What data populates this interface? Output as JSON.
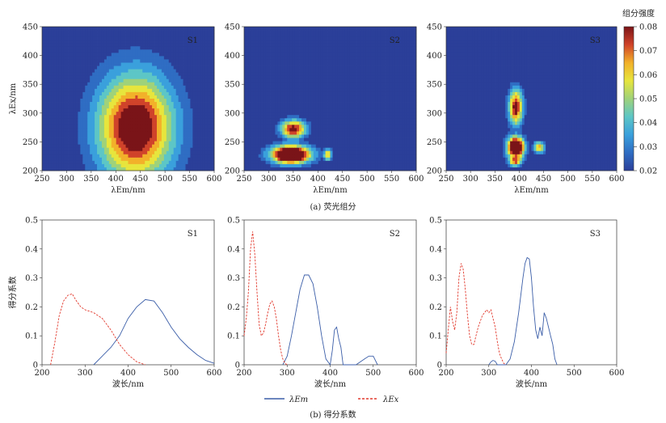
{
  "colors": {
    "colormap": [
      "#2b3f99",
      "#2f6dc3",
      "#3aa0dc",
      "#5dc6c6",
      "#9fd27a",
      "#e7e53d",
      "#f2b12a",
      "#d0432a",
      "#7a1418"
    ],
    "em_line": "#3b5ea8",
    "ex_line": "#e23a2e",
    "axis": "#333333"
  },
  "captions": {
    "a": "(a) 荧光组分",
    "b": "(b) 得分系数"
  },
  "colorbar": {
    "title": "组分强度",
    "ticks": [
      "0.08",
      "0.07",
      "0.06",
      "0.05",
      "0.04",
      "0.03",
      "0.02"
    ]
  },
  "legend": {
    "em_label": "λEm",
    "ex_label": "λEx"
  },
  "chart_data": [
    {
      "type": "heatmap",
      "label": "S1",
      "xlabel": "λEm/nm",
      "ylabel": "λEx/nm",
      "xlim": [
        250,
        600
      ],
      "ylim": [
        200,
        450
      ],
      "xticks": [
        250,
        300,
        350,
        400,
        450,
        500,
        550,
        600
      ],
      "yticks": [
        200,
        250,
        300,
        350,
        400,
        450
      ],
      "peaks": [
        {
          "em": 440,
          "ex": 275,
          "sx": 55,
          "sy": 65,
          "amp": 0.065
        }
      ],
      "range": [
        0.02,
        0.08
      ]
    },
    {
      "type": "heatmap",
      "label": "S2",
      "xlabel": "λEm/nm",
      "ylabel": "",
      "xlim": [
        250,
        600
      ],
      "ylim": [
        200,
        450
      ],
      "xticks": [
        250,
        300,
        350,
        400,
        450,
        500,
        550,
        600
      ],
      "yticks": [
        200,
        250,
        300,
        350,
        400,
        450
      ],
      "peaks": [
        {
          "em": 345,
          "ex": 228,
          "sx": 28,
          "sy": 11,
          "amp": 0.09
        },
        {
          "em": 350,
          "ex": 272,
          "sx": 18,
          "sy": 11,
          "amp": 0.06
        },
        {
          "em": 420,
          "ex": 228,
          "sx": 6,
          "sy": 7,
          "amp": 0.045
        }
      ],
      "range": [
        0.02,
        0.08
      ]
    },
    {
      "type": "heatmap",
      "label": "S3",
      "xlabel": "λEm/nm",
      "ylabel": "",
      "xlim": [
        250,
        600
      ],
      "ylim": [
        200,
        450
      ],
      "xticks": [
        250,
        300,
        350,
        400,
        450,
        500,
        550,
        600
      ],
      "yticks": [
        200,
        250,
        300,
        350,
        400,
        450
      ],
      "peaks": [
        {
          "em": 393,
          "ex": 240,
          "sx": 12,
          "sy": 13,
          "amp": 0.09
        },
        {
          "em": 393,
          "ex": 310,
          "sx": 10,
          "sy": 22,
          "amp": 0.06
        },
        {
          "em": 392,
          "ex": 218,
          "sx": 10,
          "sy": 7,
          "amp": 0.055
        },
        {
          "em": 440,
          "ex": 240,
          "sx": 8,
          "sy": 7,
          "amp": 0.045
        }
      ],
      "range": [
        0.02,
        0.08
      ]
    },
    {
      "type": "line",
      "label": "S1",
      "xlabel": "波长/nm",
      "ylabel": "得分系数",
      "xlim": [
        200,
        600
      ],
      "ylim": [
        0,
        0.5
      ],
      "xticks": [
        200,
        300,
        400,
        500,
        600
      ],
      "yticks": [
        0,
        0.1,
        0.2,
        0.3,
        0.4,
        0.5
      ],
      "series": [
        {
          "name": "λEm",
          "x": [
            320,
            340,
            360,
            380,
            400,
            420,
            440,
            460,
            480,
            500,
            520,
            540,
            560,
            580,
            600
          ],
          "y": [
            0.0,
            0.03,
            0.06,
            0.1,
            0.16,
            0.2,
            0.225,
            0.22,
            0.18,
            0.13,
            0.09,
            0.06,
            0.035,
            0.015,
            0.005
          ]
        },
        {
          "name": "λEx",
          "x": [
            220,
            230,
            240,
            250,
            260,
            270,
            280,
            290,
            300,
            320,
            340,
            360,
            380,
            400,
            420,
            440
          ],
          "y": [
            0.0,
            0.08,
            0.17,
            0.22,
            0.24,
            0.245,
            0.22,
            0.2,
            0.19,
            0.18,
            0.16,
            0.12,
            0.07,
            0.035,
            0.01,
            0.0
          ]
        }
      ]
    },
    {
      "type": "line",
      "label": "S2",
      "xlabel": "波长/nm",
      "ylabel": "",
      "xlim": [
        200,
        600
      ],
      "ylim": [
        0,
        0.5
      ],
      "xticks": [
        200,
        300,
        400,
        500,
        600
      ],
      "yticks": [
        0,
        0.1,
        0.2,
        0.3,
        0.4,
        0.5
      ],
      "series": [
        {
          "name": "λEm",
          "x": [
            290,
            300,
            310,
            320,
            330,
            340,
            350,
            360,
            370,
            380,
            390,
            400,
            405,
            410,
            415,
            420,
            425,
            430,
            440,
            460,
            480,
            490,
            500,
            510
          ],
          "y": [
            0.0,
            0.03,
            0.1,
            0.18,
            0.26,
            0.31,
            0.31,
            0.28,
            0.2,
            0.1,
            0.02,
            0.0,
            0.05,
            0.12,
            0.13,
            0.09,
            0.06,
            0.0,
            0.0,
            0.0,
            0.02,
            0.03,
            0.03,
            0.0
          ]
        },
        {
          "name": "λEx",
          "x": [
            200,
            205,
            210,
            215,
            220,
            225,
            230,
            235,
            240,
            245,
            250,
            255,
            260,
            265,
            270,
            275,
            280,
            285,
            290,
            295,
            300
          ],
          "y": [
            0.1,
            0.16,
            0.25,
            0.4,
            0.46,
            0.38,
            0.25,
            0.14,
            0.1,
            0.11,
            0.14,
            0.18,
            0.21,
            0.22,
            0.2,
            0.16,
            0.1,
            0.05,
            0.02,
            0.005,
            0.0
          ]
        }
      ]
    },
    {
      "type": "line",
      "label": "S3",
      "xlabel": "波长/nm",
      "ylabel": "",
      "xlim": [
        200,
        600
      ],
      "ylim": [
        0,
        0.5
      ],
      "xticks": [
        200,
        300,
        400,
        500,
        600
      ],
      "yticks": [
        0,
        0.1,
        0.2,
        0.3,
        0.4,
        0.5
      ],
      "series": [
        {
          "name": "λEm",
          "x": [
            300,
            305,
            310,
            315,
            320,
            330,
            340,
            350,
            360,
            370,
            380,
            385,
            390,
            395,
            400,
            405,
            410,
            415,
            420,
            425,
            430,
            435,
            440,
            445,
            450,
            455,
            460
          ],
          "y": [
            0.0,
            0.01,
            0.015,
            0.012,
            0.0,
            0.0,
            0.0,
            0.02,
            0.08,
            0.18,
            0.3,
            0.35,
            0.37,
            0.365,
            0.3,
            0.2,
            0.12,
            0.09,
            0.13,
            0.1,
            0.18,
            0.16,
            0.13,
            0.1,
            0.07,
            0.02,
            0.0
          ]
        },
        {
          "name": "λEx",
          "x": [
            200,
            205,
            210,
            215,
            220,
            225,
            230,
            235,
            240,
            245,
            250,
            255,
            260,
            265,
            270,
            275,
            280,
            285,
            290,
            295,
            300,
            305,
            310,
            315,
            320,
            325,
            330,
            335,
            340
          ],
          "y": [
            0.04,
            0.12,
            0.2,
            0.15,
            0.12,
            0.18,
            0.3,
            0.35,
            0.33,
            0.26,
            0.17,
            0.1,
            0.07,
            0.07,
            0.1,
            0.13,
            0.15,
            0.17,
            0.18,
            0.19,
            0.18,
            0.19,
            0.16,
            0.13,
            0.08,
            0.04,
            0.02,
            0.005,
            0.0
          ]
        }
      ]
    }
  ]
}
